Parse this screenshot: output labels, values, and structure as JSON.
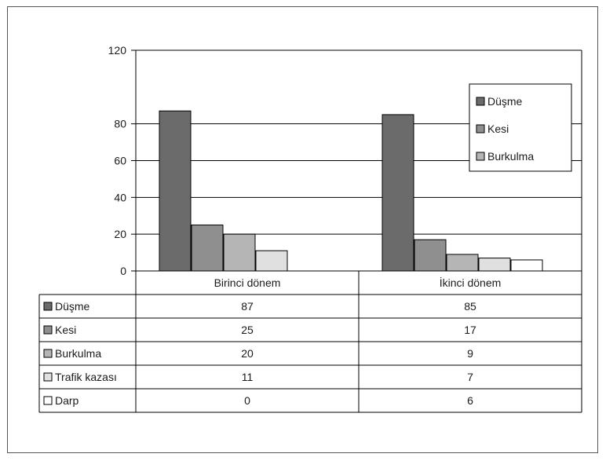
{
  "chart_data": {
    "type": "bar",
    "categories": [
      "Birinci dönem",
      "İkinci dönem"
    ],
    "series": [
      {
        "name": "Düşme",
        "values": [
          87,
          85
        ],
        "color": "#6b6b6b"
      },
      {
        "name": "Kesi",
        "values": [
          25,
          17
        ],
        "color": "#8f8f8f"
      },
      {
        "name": "Burkulma",
        "values": [
          20,
          9
        ],
        "color": "#b5b5b5"
      },
      {
        "name": "Trafik kazası",
        "values": [
          11,
          7
        ],
        "color": "#e0e0e0"
      },
      {
        "name": "Darp",
        "values": [
          0,
          6
        ],
        "color": "#ffffff"
      }
    ],
    "ylim": [
      0,
      120
    ],
    "yticks": [
      "0",
      "20",
      "40",
      "60",
      "80",
      "120"
    ],
    "legend_position": "top-right",
    "legend_series_count": 3,
    "grid": true,
    "data_table": true
  }
}
